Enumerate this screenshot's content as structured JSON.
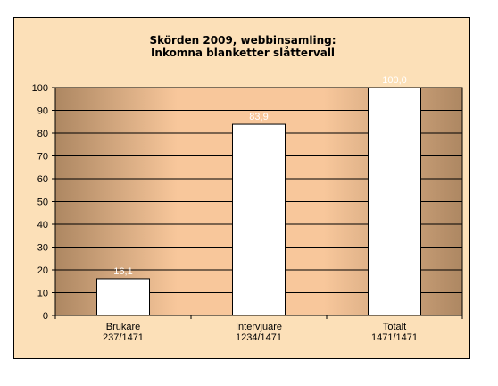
{
  "chart_data": {
    "type": "bar",
    "title_lines": [
      "Skörden 2009, webbinsamling:",
      "Inkomna blanketter slåttervall"
    ],
    "categories": [
      {
        "lines": [
          "Brukare",
          "237/1471"
        ]
      },
      {
        "lines": [
          "Intervjuare",
          "1234/1471"
        ]
      },
      {
        "lines": [
          "Totalt",
          "1471/1471"
        ]
      }
    ],
    "values": [
      16.1,
      83.9,
      100.0
    ],
    "data_labels": [
      "16,1",
      "83,9",
      "100,0"
    ],
    "ylim": [
      0,
      100
    ],
    "yticks": [
      0,
      10,
      20,
      30,
      40,
      50,
      60,
      70,
      80,
      90,
      100
    ],
    "grid": true,
    "legend": "none",
    "xlabel": "",
    "ylabel": ""
  },
  "colors": {
    "plot_gradient_dark": "#ad8762",
    "plot_gradient_light": "#f8c79b",
    "bar_fill": "#ffffff",
    "bar_stroke": "#000000",
    "gridline": "#000000",
    "frame_background": "#fce0b8"
  }
}
